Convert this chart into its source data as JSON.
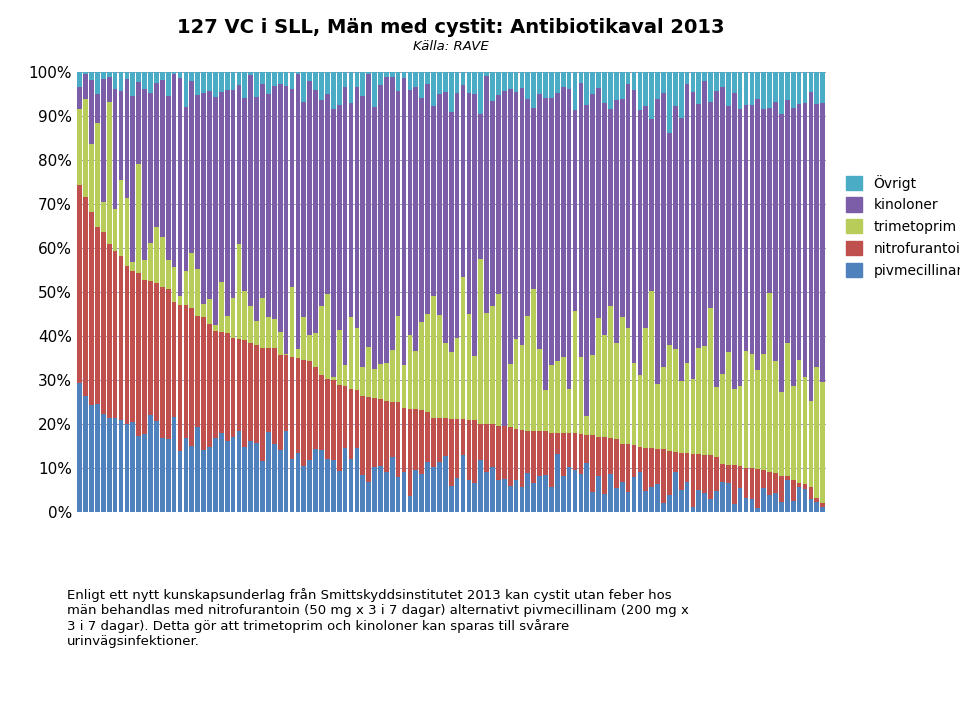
{
  "title": "127 VC i SLL, Män med cystit: Antibiotikaval 2013",
  "subtitle": "Källa: RAVE",
  "legend_labels": [
    "Övrigt",
    "kinoloner",
    "trimetoprim",
    "nitrofurantoin",
    "pivmecillinam"
  ],
  "colors": {
    "ovrigt": "#4BACC6",
    "kinoloner": "#7B5EA7",
    "trimetoprim": "#B8CC5A",
    "nitrofurantoin": "#C0504D",
    "pivmecillinam": "#4F81BD"
  },
  "ylabel_ticks": [
    "0%",
    "10%",
    "20%",
    "30%",
    "40%",
    "50%",
    "60%",
    "70%",
    "80%",
    "90%",
    "100%"
  ],
  "footer_text": "Enligt ett nytt kunskapsunderlag från Smittskyddsinstitutet 2013 kan cystit utan feber hos\nmän behandlas med nitrofurantoin (50 mg x 3 i 7 dagar) alternativt pivmecillinam (200 mg x\n3 i 7 dagar). Detta gör att trimetoprim och kinoloner kan sparas till svårare\nurinvägsinfektioner.",
  "n_bars": 127,
  "bar_width": 0.8,
  "figsize": [
    9.6,
    7.21
  ],
  "dpi": 100
}
